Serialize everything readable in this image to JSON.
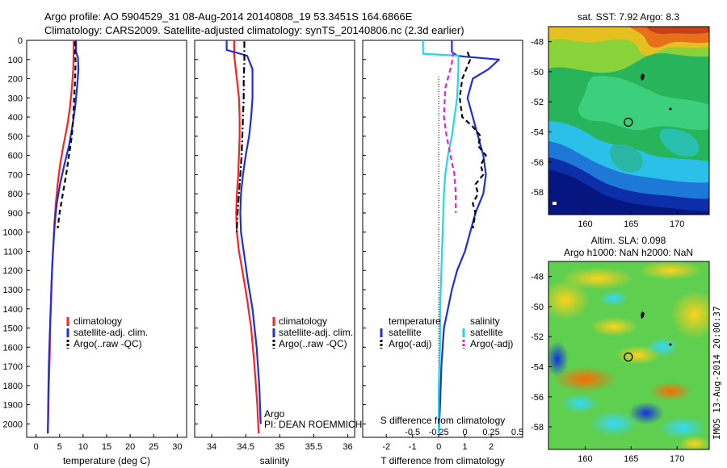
{
  "header": {
    "line1": "Argo profile: AO 5904529_31 08-Aug-2014 20140808_19 53.3451S 164.6866E",
    "line2": "Climatology: CARS2009. Satellite-adjusted climatology: synTS_20140806.nc (2.3d earlier)"
  },
  "colors": {
    "climatology": "#ff2020",
    "satellite": "#1f2fd0",
    "argo": "#000000",
    "sal_sat": "#22d8e8",
    "sal_argo": "#e020e0",
    "dotted": "#000000"
  },
  "chart_data": [
    {
      "type": "line",
      "name": "temperature-panel",
      "xlabel": "temperature (deg C)",
      "ylabel": "",
      "xlim": [
        -2,
        32
      ],
      "ylim": [
        2070,
        0
      ],
      "xticks": [
        0,
        5,
        10,
        15,
        20,
        25,
        30
      ],
      "yticks": [
        0,
        100,
        200,
        300,
        400,
        500,
        600,
        700,
        800,
        900,
        1000,
        1100,
        1200,
        1300,
        1400,
        1500,
        1600,
        1700,
        1800,
        1900,
        2000
      ],
      "legend": [
        "climatology",
        "satellite-adj. clim.",
        "Argo(..raw -QC)"
      ],
      "series": [
        {
          "name": "climatology",
          "style": "solid",
          "color": "#ff2020",
          "x": [
            8.0,
            8.0,
            7.9,
            7.6,
            7.2,
            6.6,
            5.8,
            5.1,
            4.6,
            4.2,
            3.9,
            3.7,
            3.4,
            3.2,
            3.0,
            2.9,
            2.7,
            2.6,
            2.5
          ],
          "y": [
            0,
            60,
            150,
            250,
            350,
            450,
            550,
            650,
            750,
            850,
            950,
            1050,
            1200,
            1350,
            1500,
            1650,
            1800,
            1950,
            2050
          ]
        },
        {
          "name": "satellite-adj. clim.",
          "style": "solid",
          "color": "#1f2fd0",
          "x": [
            8.5,
            8.5,
            8.9,
            9.0,
            8.7,
            8.3,
            7.7,
            7.0,
            6.0,
            5.1,
            4.4,
            4.0,
            3.6,
            3.3,
            3.1,
            2.9,
            2.7,
            2.6,
            2.5
          ],
          "y": [
            0,
            60,
            90,
            150,
            250,
            350,
            450,
            550,
            650,
            750,
            850,
            950,
            1100,
            1250,
            1400,
            1550,
            1700,
            1850,
            2050
          ]
        },
        {
          "name": "Argo(..raw -QC)",
          "style": "dashed",
          "color": "#000000",
          "x": [
            8.3,
            8.3,
            8.4,
            8.3,
            8.1,
            7.9,
            7.6,
            7.0,
            6.4,
            5.7,
            5.0,
            4.6
          ],
          "y": [
            5,
            60,
            120,
            200,
            300,
            400,
            500,
            600,
            700,
            800,
            900,
            980
          ]
        }
      ]
    },
    {
      "type": "line",
      "name": "salinity-panel",
      "xlabel": "salinity",
      "ylabel": "",
      "xlim": [
        33.75,
        36.1
      ],
      "ylim": [
        2070,
        0
      ],
      "xticks": [
        34,
        34.5,
        35,
        35.5,
        36
      ],
      "legend": [
        "climatology",
        "satellite-adj. clim.",
        "Argo(..raw -QC)"
      ],
      "annotation": [
        "Argo",
        "PI: DEAN ROEMMICH"
      ],
      "series": [
        {
          "name": "climatology",
          "style": "solid",
          "color": "#ff2020",
          "x": [
            34.33,
            34.33,
            34.37,
            34.4,
            34.41,
            34.41,
            34.4,
            34.39,
            34.37,
            34.36,
            34.37,
            34.4,
            34.45,
            34.52,
            34.58,
            34.63,
            34.67,
            34.69
          ],
          "y": [
            0,
            80,
            200,
            300,
            400,
            500,
            600,
            700,
            800,
            900,
            1000,
            1100,
            1200,
            1350,
            1500,
            1700,
            1900,
            2050
          ]
        },
        {
          "name": "satellite-adj. clim.",
          "style": "solid",
          "color": "#1f2fd0",
          "x": [
            34.22,
            34.22,
            34.52,
            34.6,
            34.6,
            34.58,
            34.55,
            34.5,
            34.46,
            34.43,
            34.42,
            34.43,
            34.47,
            34.53,
            34.6,
            34.66,
            34.7,
            34.72
          ],
          "y": [
            0,
            50,
            80,
            150,
            300,
            400,
            500,
            600,
            700,
            800,
            900,
            1000,
            1100,
            1250,
            1400,
            1600,
            1800,
            2000
          ]
        },
        {
          "name": "Argo(..raw -QC)",
          "style": "dashdot",
          "color": "#000000",
          "x": [
            34.48,
            34.48,
            34.48,
            34.47,
            34.47,
            34.46,
            34.45,
            34.44,
            34.42,
            34.4,
            34.38,
            34.37,
            34.37
          ],
          "y": [
            5,
            60,
            120,
            200,
            300,
            400,
            500,
            600,
            700,
            800,
            900,
            980,
            1000
          ]
        }
      ]
    },
    {
      "type": "line",
      "name": "difference-panel",
      "xlabel": "T difference from climatology",
      "x2label": "S difference from climatology",
      "xlim": [
        -2.9,
        3.2
      ],
      "ylim": [
        2070,
        0
      ],
      "xticks": [
        -2,
        -1,
        0,
        1,
        2
      ],
      "x2ticks": [
        "-0.5",
        "-0.25",
        "0",
        "0.25",
        "0.5"
      ],
      "legend_left_title": "temperature",
      "legend_right_title": "salinity",
      "legend": [
        "satellite",
        "Argo(-adj)",
        "satellite",
        "Argo(-adj)"
      ],
      "series": [
        {
          "name": "temperature satellite",
          "style": "solid",
          "color": "#1f2fd0",
          "x": [
            0.5,
            0.5,
            0.7,
            1.0,
            2.3,
            1.9,
            1.3,
            1.1,
            1.3,
            1.5,
            1.7,
            1.8,
            1.7,
            1.4,
            1.2,
            1.0,
            0.7,
            0.5,
            0.35,
            0.2,
            0.1,
            0.05,
            0
          ],
          "y": [
            0,
            60,
            80,
            85,
            100,
            150,
            200,
            300,
            400,
            500,
            600,
            700,
            800,
            900,
            1000,
            1100,
            1200,
            1300,
            1400,
            1500,
            1700,
            1900,
            2050
          ]
        },
        {
          "name": "temperature Argo(-adj)",
          "style": "dashed",
          "color": "#000000",
          "x": [
            1.1,
            1.2,
            0.9,
            0.8,
            0.9,
            1.3,
            1.6,
            1.5,
            1.8,
            1.6,
            1.7,
            1.4,
            1.5,
            1.3,
            1.4,
            1.3
          ],
          "y": [
            60,
            100,
            200,
            300,
            400,
            450,
            500,
            550,
            600,
            650,
            700,
            750,
            800,
            850,
            900,
            980
          ]
        },
        {
          "name": "salinity satellite",
          "style": "solid",
          "color": "#22d8e8",
          "x": [
            -0.6,
            -0.6,
            0.75,
            0.75,
            0.7,
            0.6,
            0.5,
            0.35,
            0.25,
            0.2,
            0.15,
            0.1,
            0.05,
            0.05,
            0,
            0
          ],
          "y": [
            0,
            70,
            80,
            150,
            300,
            400,
            500,
            600,
            700,
            800,
            1000,
            1200,
            1400,
            1600,
            1800,
            2050
          ]
        },
        {
          "name": "salinity Argo(-adj)",
          "style": "dashed",
          "color": "#e020e0",
          "x": [
            0.55,
            0.5,
            0.25,
            0.2,
            0.3,
            0.45,
            0.6,
            0.65,
            0.65
          ],
          "y": [
            60,
            120,
            250,
            400,
            500,
            600,
            700,
            800,
            900
          ]
        }
      ]
    },
    {
      "type": "heatmap",
      "name": "sst-map",
      "title": "sat. SST: 7.92 Argo: 8.3",
      "xlim": [
        156,
        173.5
      ],
      "ylim": [
        -59.5,
        -47
      ],
      "xticks": [
        160,
        165,
        170
      ],
      "yticks": [
        -48,
        -50,
        -52,
        -54,
        -56,
        -58
      ],
      "marker": {
        "lon": 164.69,
        "lat": -53.35
      }
    },
    {
      "type": "heatmap",
      "name": "sla-map",
      "title": "Altim. SLA: 0.098",
      "subtitle": "Argo h1000: NaN h2000: NaN",
      "xlim": [
        156,
        173.5
      ],
      "ylim": [
        -59.5,
        -47
      ],
      "xticks": [
        160,
        165,
        170
      ],
      "yticks": [
        -48,
        -50,
        -52,
        -54,
        -56,
        -58
      ],
      "marker": {
        "lon": 164.69,
        "lat": -53.35
      }
    }
  ],
  "stamp": "IMOS 13-Aug-2014 20:00:37"
}
